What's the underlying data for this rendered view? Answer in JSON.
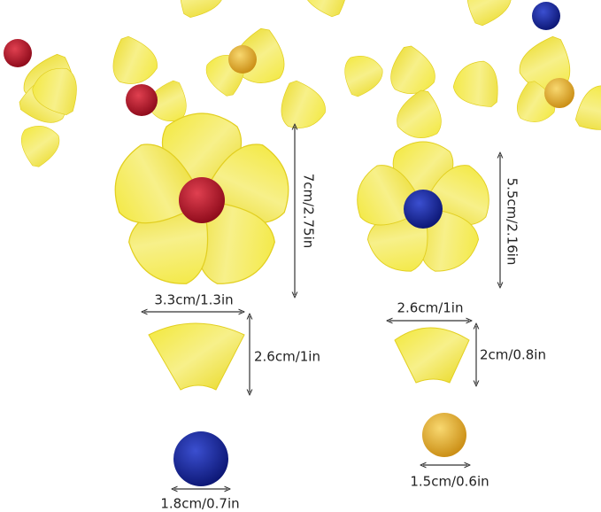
{
  "dimensions": {
    "large_flower_height": "7cm/2.75in",
    "small_flower_height": "5.5cm/2.16in",
    "large_petal_width": "3.3cm/1.3in",
    "large_petal_height": "2.6cm/1in",
    "small_petal_width": "2.6cm/1in",
    "small_petal_height": "2cm/0.8in",
    "large_bead_diameter": "1.8cm/0.7in",
    "small_bead_diameter": "1.5cm/0.6in"
  }
}
